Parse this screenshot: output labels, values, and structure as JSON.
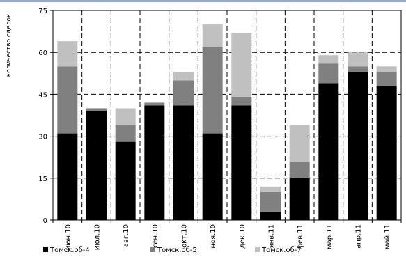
{
  "chart_data": {
    "type": "bar",
    "stacked": true,
    "title": "",
    "xlabel": "",
    "ylabel": "количество сделок",
    "ylim": [
      0,
      75
    ],
    "yticks": [
      0,
      15,
      30,
      45,
      60,
      75
    ],
    "grid": "dashed",
    "legend_position": "bottom",
    "categories": [
      "июн.10",
      "июл.10",
      "авг.10",
      "сен.10",
      "окт.10",
      "ноя.10",
      "дек.10",
      "янв.11",
      "фев.11",
      "мар.11",
      "апр.11",
      "май.11"
    ],
    "series": [
      {
        "name": "Томск.об-4",
        "color": "#000000",
        "values": [
          31,
          39,
          28,
          41,
          41,
          31,
          41,
          3,
          15,
          49,
          53,
          48
        ]
      },
      {
        "name": "Томск.об-5",
        "color": "#808080",
        "values": [
          24,
          1,
          6,
          1,
          9,
          31,
          3,
          7,
          6,
          7,
          2,
          5
        ]
      },
      {
        "name": "Томск.об-7",
        "color": "#c0c0c0",
        "values": [
          9,
          0,
          6,
          0,
          3,
          8,
          23,
          2,
          13,
          3,
          5,
          2
        ]
      }
    ]
  }
}
